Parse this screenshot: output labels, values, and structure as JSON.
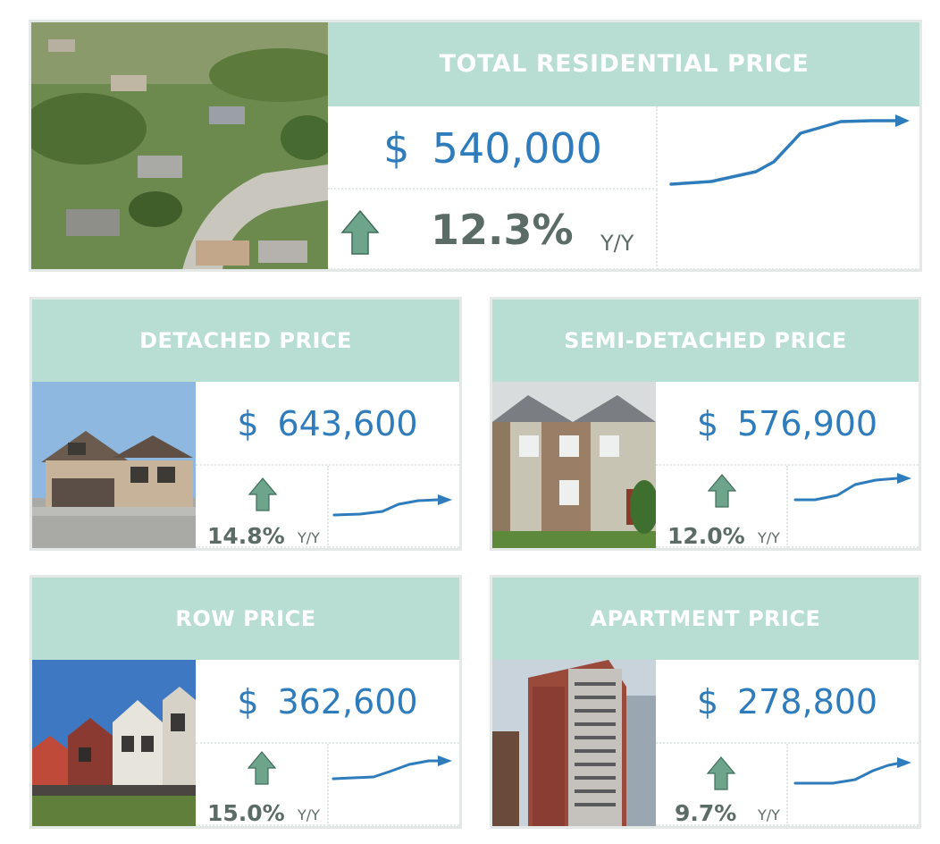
{
  "colors": {
    "header_bg": "#b8ddd3",
    "price_blue": "#2f7cbd",
    "arrow_green": "#6ea38c",
    "pct_gray": "#5b6b66"
  },
  "total": {
    "title": "TOTAL RESIDENTIAL PRICE",
    "currency": "$",
    "price": "540,000",
    "change": "12.3%",
    "period": "Y/Y",
    "icon": "arrow-up-icon",
    "photo": "aerial-neighborhood-photo"
  },
  "cards": [
    {
      "id": "detached",
      "title": "DETACHED PRICE",
      "currency": "$",
      "price": "643,600",
      "change": "14.8%",
      "period": "Y/Y",
      "photo": "detached-house-photo"
    },
    {
      "id": "semi",
      "title": "SEMI-DETACHED PRICE",
      "currency": "$",
      "price": "576,900",
      "change": "12.0%",
      "period": "Y/Y",
      "photo": "semi-detached-house-photo"
    },
    {
      "id": "row",
      "title": "ROW PRICE",
      "currency": "$",
      "price": "362,600",
      "change": "15.0%",
      "period": "Y/Y",
      "photo": "row-houses-photo"
    },
    {
      "id": "apartment",
      "title": "APARTMENT PRICE",
      "currency": "$",
      "price": "278,800",
      "change": "9.7%",
      "period": "Y/Y",
      "photo": "apartment-tower-photo"
    }
  ]
}
